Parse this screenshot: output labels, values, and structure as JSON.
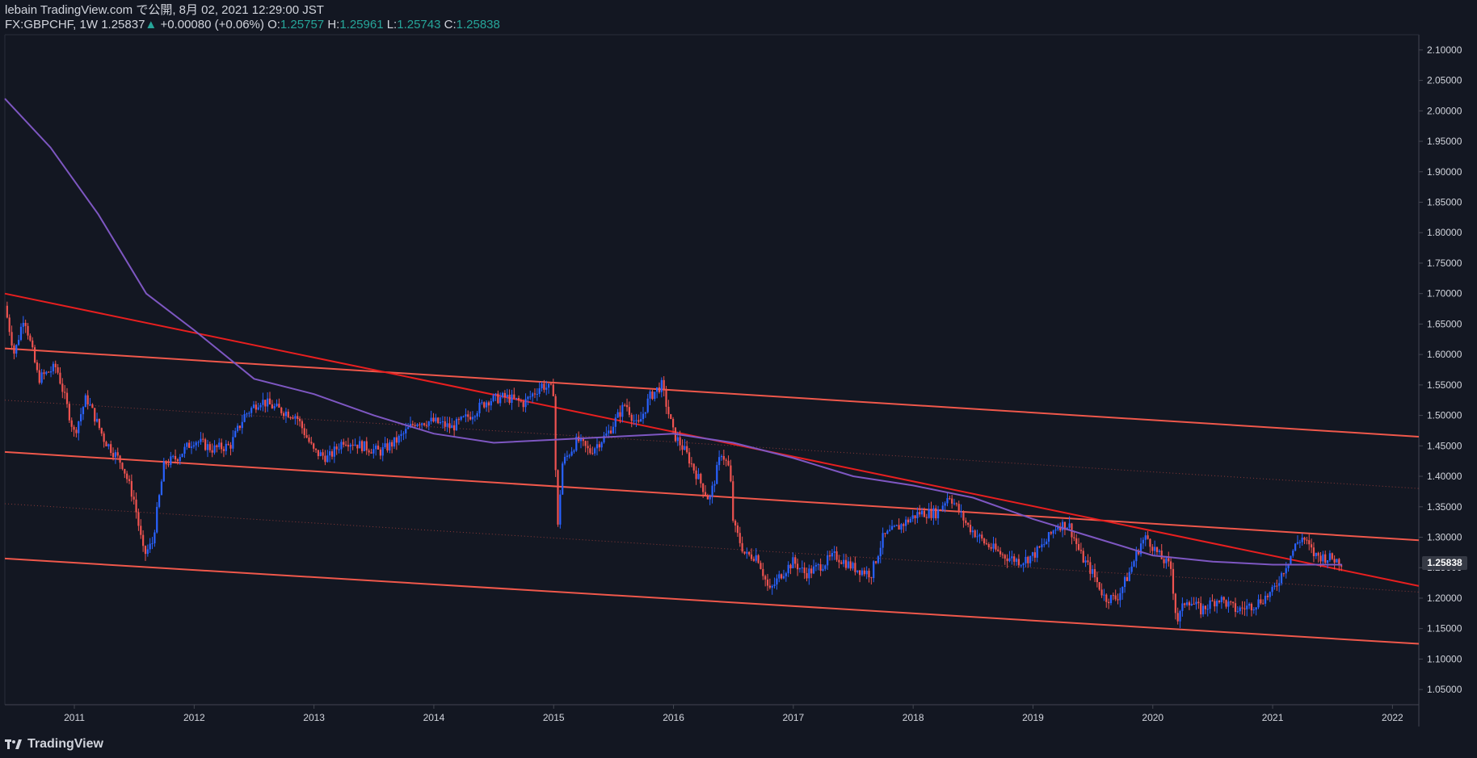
{
  "header": {
    "line1": "lebain TradingView.com で公開, 8月 02, 2021 12:29:00 JST",
    "symbol": "FX:GBPCHF, 1W",
    "last": "1.25837",
    "change": "+0.00080 (+0.06%)",
    "o_label": "O:",
    "o_value": "1.25757",
    "h_label": "H:",
    "h_value": "1.25961",
    "l_label": "L:",
    "l_value": "1.25743",
    "c_label": "C:",
    "c_value": "1.25838"
  },
  "footer": {
    "brand": "TradingView"
  },
  "last_price_label": "1.25838",
  "colors": {
    "background": "#131722",
    "up": "#2962ff",
    "down": "#ef5350",
    "ma": "#7e57c2",
    "channel": "#f0584b",
    "trend": "#e81f1f",
    "axis_text": "#d1d4dc"
  },
  "chart_data": {
    "type": "candlestick",
    "symbol": "FX:GBPCHF",
    "timeframe": "1W",
    "ylim": [
      1.025,
      2.125
    ],
    "xlim": [
      2010.42,
      2022.22
    ],
    "y_ticks": [
      "1.05000",
      "1.10000",
      "1.15000",
      "1.20000",
      "1.25000",
      "1.30000",
      "1.35000",
      "1.40000",
      "1.45000",
      "1.50000",
      "1.55000",
      "1.60000",
      "1.65000",
      "1.70000",
      "1.75000",
      "1.80000",
      "1.85000",
      "1.90000",
      "1.95000",
      "2.00000",
      "2.05000",
      "2.10000"
    ],
    "x_ticks": [
      "2011",
      "2012",
      "2013",
      "2014",
      "2015",
      "2016",
      "2017",
      "2018",
      "2019",
      "2020",
      "2021",
      "2022"
    ],
    "price_path": [
      [
        2010.42,
        1.68
      ],
      [
        2010.5,
        1.6
      ],
      [
        2010.58,
        1.665
      ],
      [
        2010.7,
        1.56
      ],
      [
        2010.85,
        1.58
      ],
      [
        2011.0,
        1.47
      ],
      [
        2011.1,
        1.53
      ],
      [
        2011.25,
        1.46
      ],
      [
        2011.4,
        1.42
      ],
      [
        2011.5,
        1.36
      ],
      [
        2011.58,
        1.27
      ],
      [
        2011.65,
        1.29
      ],
      [
        2011.75,
        1.42
      ],
      [
        2011.85,
        1.43
      ],
      [
        2012.0,
        1.46
      ],
      [
        2012.15,
        1.445
      ],
      [
        2012.3,
        1.45
      ],
      [
        2012.42,
        1.5
      ],
      [
        2012.55,
        1.525
      ],
      [
        2012.7,
        1.51
      ],
      [
        2012.85,
        1.5
      ],
      [
        2013.0,
        1.44
      ],
      [
        2013.12,
        1.43
      ],
      [
        2013.25,
        1.46
      ],
      [
        2013.4,
        1.45
      ],
      [
        2013.55,
        1.44
      ],
      [
        2013.7,
        1.46
      ],
      [
        2013.85,
        1.49
      ],
      [
        2014.0,
        1.49
      ],
      [
        2014.15,
        1.48
      ],
      [
        2014.3,
        1.5
      ],
      [
        2014.45,
        1.525
      ],
      [
        2014.6,
        1.53
      ],
      [
        2014.75,
        1.52
      ],
      [
        2014.9,
        1.55
      ],
      [
        2015.0,
        1.54
      ],
      [
        2015.03,
        1.3
      ],
      [
        2015.07,
        1.42
      ],
      [
        2015.2,
        1.46
      ],
      [
        2015.3,
        1.44
      ],
      [
        2015.45,
        1.47
      ],
      [
        2015.6,
        1.52
      ],
      [
        2015.7,
        1.48
      ],
      [
        2015.8,
        1.53
      ],
      [
        2015.9,
        1.55
      ],
      [
        2016.0,
        1.47
      ],
      [
        2016.1,
        1.44
      ],
      [
        2016.2,
        1.4
      ],
      [
        2016.3,
        1.36
      ],
      [
        2016.4,
        1.44
      ],
      [
        2016.47,
        1.41
      ],
      [
        2016.5,
        1.32
      ],
      [
        2016.6,
        1.27
      ],
      [
        2016.7,
        1.27
      ],
      [
        2016.8,
        1.21
      ],
      [
        2016.9,
        1.24
      ],
      [
        2017.0,
        1.26
      ],
      [
        2017.1,
        1.24
      ],
      [
        2017.2,
        1.25
      ],
      [
        2017.35,
        1.27
      ],
      [
        2017.5,
        1.25
      ],
      [
        2017.65,
        1.24
      ],
      [
        2017.75,
        1.3
      ],
      [
        2017.9,
        1.32
      ],
      [
        2018.05,
        1.34
      ],
      [
        2018.2,
        1.34
      ],
      [
        2018.3,
        1.37
      ],
      [
        2018.45,
        1.32
      ],
      [
        2018.6,
        1.29
      ],
      [
        2018.75,
        1.27
      ],
      [
        2018.9,
        1.26
      ],
      [
        2019.0,
        1.27
      ],
      [
        2019.1,
        1.29
      ],
      [
        2019.2,
        1.32
      ],
      [
        2019.3,
        1.32
      ],
      [
        2019.4,
        1.27
      ],
      [
        2019.5,
        1.24
      ],
      [
        2019.6,
        1.2
      ],
      [
        2019.7,
        1.2
      ],
      [
        2019.8,
        1.24
      ],
      [
        2019.9,
        1.29
      ],
      [
        2019.95,
        1.3
      ],
      [
        2020.05,
        1.27
      ],
      [
        2020.15,
        1.25
      ],
      [
        2020.2,
        1.16
      ],
      [
        2020.28,
        1.2
      ],
      [
        2020.4,
        1.18
      ],
      [
        2020.55,
        1.2
      ],
      [
        2020.7,
        1.18
      ],
      [
        2020.85,
        1.19
      ],
      [
        2021.0,
        1.21
      ],
      [
        2021.1,
        1.25
      ],
      [
        2021.2,
        1.29
      ],
      [
        2021.25,
        1.3
      ],
      [
        2021.35,
        1.27
      ],
      [
        2021.5,
        1.265
      ],
      [
        2021.58,
        1.258
      ]
    ],
    "ma_line": [
      [
        2010.42,
        2.02
      ],
      [
        2010.8,
        1.94
      ],
      [
        2011.2,
        1.83
      ],
      [
        2011.6,
        1.7
      ],
      [
        2012.0,
        1.64
      ],
      [
        2012.5,
        1.56
      ],
      [
        2013.0,
        1.535
      ],
      [
        2013.5,
        1.5
      ],
      [
        2014.0,
        1.47
      ],
      [
        2014.5,
        1.455
      ],
      [
        2015.0,
        1.46
      ],
      [
        2015.5,
        1.465
      ],
      [
        2016.0,
        1.47
      ],
      [
        2016.5,
        1.455
      ],
      [
        2017.0,
        1.43
      ],
      [
        2017.5,
        1.4
      ],
      [
        2018.0,
        1.385
      ],
      [
        2018.5,
        1.365
      ],
      [
        2019.0,
        1.33
      ],
      [
        2019.5,
        1.3
      ],
      [
        2020.0,
        1.27
      ],
      [
        2020.5,
        1.26
      ],
      [
        2021.0,
        1.255
      ],
      [
        2021.58,
        1.255
      ]
    ],
    "trend_lines": [
      {
        "style": "solid",
        "color": "#f0584b",
        "p1": [
          2010.42,
          1.61
        ],
        "p2": [
          2022.22,
          1.465
        ]
      },
      {
        "style": "solid",
        "color": "#f0584b",
        "p1": [
          2010.42,
          1.44
        ],
        "p2": [
          2022.22,
          1.295
        ]
      },
      {
        "style": "solid",
        "color": "#f0584b",
        "p1": [
          2010.42,
          1.265
        ],
        "p2": [
          2022.22,
          1.125
        ]
      },
      {
        "style": "solid",
        "color": "#e81f1f",
        "p1": [
          2010.42,
          1.7
        ],
        "p2": [
          2022.22,
          1.22
        ]
      },
      {
        "style": "dotted",
        "color": "#8a3a3a",
        "p1": [
          2010.42,
          1.525
        ],
        "p2": [
          2022.22,
          1.38
        ]
      },
      {
        "style": "dotted",
        "color": "#8a3a3a",
        "p1": [
          2010.42,
          1.355
        ],
        "p2": [
          2022.22,
          1.21
        ]
      }
    ]
  }
}
